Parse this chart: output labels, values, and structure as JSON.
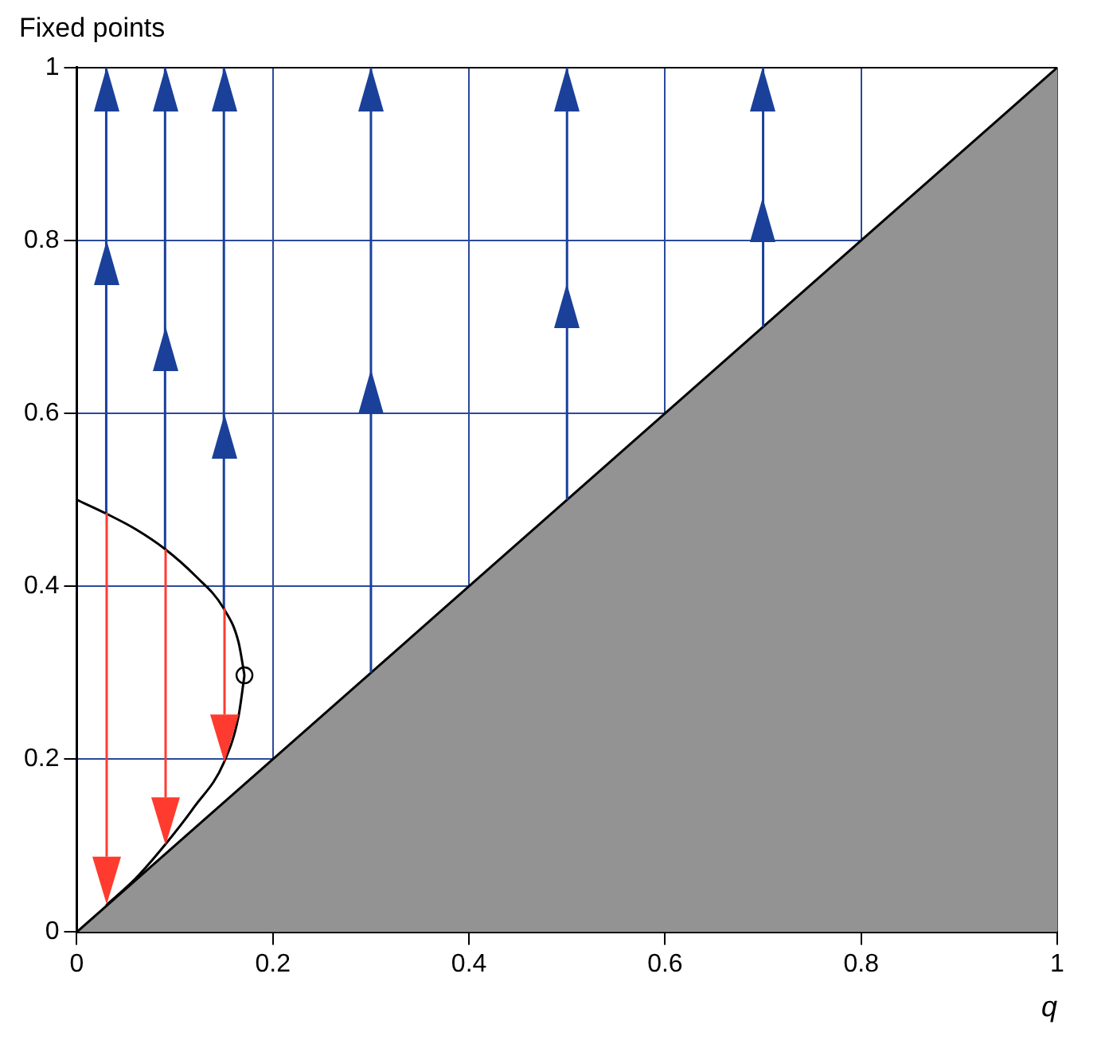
{
  "chart_data": {
    "type": "line",
    "title": "Fixed points",
    "xlabel": "q",
    "xlim": [
      0,
      1
    ],
    "ylim": [
      0,
      1
    ],
    "xticks": [
      0,
      0.2,
      0.4,
      0.6,
      0.8,
      1
    ],
    "yticks": [
      0,
      0.2,
      0.4,
      0.6,
      0.8,
      1
    ],
    "grid": true,
    "legend": false,
    "series": [
      {
        "type": "area",
        "color": "#939393",
        "x": [
          0,
          1
        ],
        "values": [
          0,
          1
        ]
      },
      {
        "color": "#000000",
        "x": [
          0,
          0.03,
          0.06,
          0.09,
          0.12,
          0.15,
          0.165,
          0.171
        ],
        "values": [
          0.5,
          0.484,
          0.466,
          0.443,
          0.413,
          0.374,
          0.335,
          0.297
        ]
      },
      {
        "color": "#000000",
        "x": [
          0.03,
          0.06,
          0.09,
          0.12,
          0.15,
          0.165,
          0.171
        ],
        "values": [
          0.031,
          0.062,
          0.101,
          0.145,
          0.196,
          0.25,
          0.297
        ]
      },
      {
        "type": "scatter",
        "color": "#000000",
        "marker": "circle",
        "x": [
          0.171
        ],
        "values": [
          0.297
        ]
      },
      {
        "color": "#1a409a",
        "x": [
          0.03,
          0.03,
          0.03
        ],
        "values": [
          0.484,
          0.8,
          1
        ]
      },
      {
        "color": "#1a409a",
        "x": [
          0.09,
          0.09,
          0.09
        ],
        "values": [
          0.443,
          0.7,
          1
        ]
      },
      {
        "color": "#1a409a",
        "x": [
          0.15,
          0.15,
          0.15
        ],
        "values": [
          0.374,
          0.6,
          1
        ]
      },
      {
        "color": "#1a409a",
        "x": [
          0.3,
          0.3,
          0.3
        ],
        "values": [
          0.3,
          0.65,
          1
        ]
      },
      {
        "color": "#1a409a",
        "x": [
          0.5,
          0.5,
          0.5
        ],
        "values": [
          0.5,
          0.75,
          1
        ]
      },
      {
        "color": "#1a409a",
        "x": [
          0.7,
          0.7,
          0.7
        ],
        "values": [
          0.7,
          0.85,
          1
        ]
      }
    ]
  }
}
